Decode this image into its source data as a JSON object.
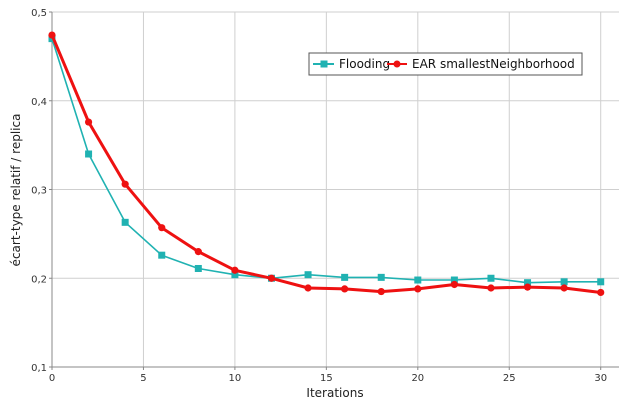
{
  "chart_data": {
    "type": "line",
    "title": "",
    "xlabel": "Iterations",
    "ylabel": "écart-type relatif / replica",
    "xlim": [
      0,
      31
    ],
    "ylim": [
      0.1,
      0.5
    ],
    "x_ticks": [
      0,
      5,
      10,
      15,
      20,
      25,
      30
    ],
    "x_tick_labels": [
      "0",
      "5",
      "10",
      "15",
      "20",
      "25",
      "30"
    ],
    "y_ticks": [
      0.1,
      0.2,
      0.3,
      0.4,
      0.5
    ],
    "y_tick_labels": [
      "0,1",
      "0,2",
      "0,3",
      "0,4",
      "0,5"
    ],
    "grid": true,
    "legend_position": "top-right",
    "series": [
      {
        "name": "Flooding",
        "color": "#20b2b2",
        "marker": "square",
        "x": [
          0,
          2,
          4,
          6,
          8,
          10,
          12,
          14,
          16,
          18,
          20,
          22,
          24,
          26,
          28,
          30
        ],
        "values": [
          0.47,
          0.34,
          0.263,
          0.226,
          0.211,
          0.204,
          0.2,
          0.204,
          0.201,
          0.201,
          0.198,
          0.198,
          0.2,
          0.195,
          0.196,
          0.196
        ]
      },
      {
        "name": "EAR smallestNeighborhood",
        "color": "#ee1111",
        "marker": "circle",
        "x": [
          0,
          2,
          4,
          6,
          8,
          10,
          12,
          14,
          16,
          18,
          20,
          22,
          24,
          26,
          28,
          30
        ],
        "values": [
          0.474,
          0.376,
          0.306,
          0.257,
          0.23,
          0.209,
          0.2,
          0.189,
          0.188,
          0.185,
          0.188,
          0.193,
          0.189,
          0.19,
          0.189,
          0.184
        ]
      }
    ]
  }
}
